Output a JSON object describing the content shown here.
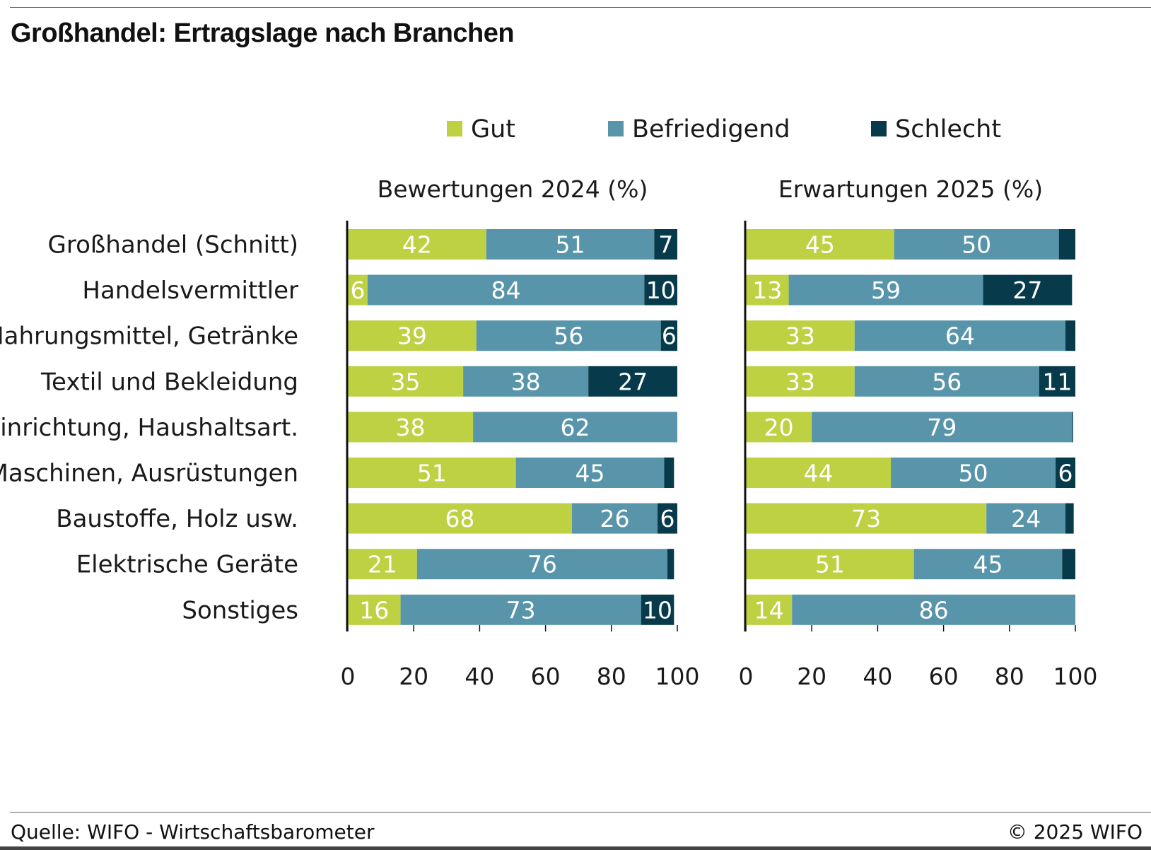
{
  "title": "Großhandel: Ertragslage nach Branchen",
  "source": "Quelle: WIFO - Wirtschaftsbarometer",
  "copyright": "© 2025 WIFO",
  "colors": {
    "gut": "#bdd142",
    "befriedigend": "#5895ab",
    "schlecht": "#073b4c"
  },
  "chart_data": [
    {
      "type": "bar",
      "orientation": "horizontal",
      "stacked": true,
      "title": "Bewertungen 2024 (%)",
      "categories": [
        "Großhandel (Schnitt)",
        "Handelsvermittler",
        "Nahrungsmittel, Getränke",
        "Textil und Bekleidung",
        "Einrichtung, Haushaltsart.",
        "Maschinen, Ausrüstungen",
        "Baustoffe, Holz usw.",
        "Elektrische Geräte",
        "Sonstiges"
      ],
      "series": [
        {
          "name": "Gut",
          "values": [
            42,
            6,
            39,
            35,
            38,
            51,
            68,
            21,
            16
          ],
          "labels": [
            "42",
            "6",
            "39",
            "35",
            "38",
            "51",
            "68",
            "21",
            "16"
          ]
        },
        {
          "name": "Befriedigend",
          "values": [
            51,
            84,
            56,
            38,
            62,
            45,
            26,
            76,
            73
          ],
          "labels": [
            "51",
            "84",
            "56",
            "38",
            "62",
            "45",
            "26",
            "76",
            "73"
          ]
        },
        {
          "name": "Schlecht",
          "values": [
            7,
            10,
            6,
            27,
            0.3,
            3,
            6,
            2,
            10
          ],
          "labels": [
            "7",
            "10",
            "6",
            "27",
            "",
            "",
            "6",
            "",
            "10"
          ]
        }
      ],
      "xlim": [
        0,
        100
      ],
      "xticks": [
        "0",
        "20",
        "40",
        "60",
        "80",
        "100"
      ],
      "legend": "top",
      "grid": false
    },
    {
      "type": "bar",
      "orientation": "horizontal",
      "stacked": true,
      "title": "Erwartungen 2025 (%)",
      "categories": [
        "Großhandel (Schnitt)",
        "Handelsvermittler",
        "Nahrungsmittel, Getränke",
        "Textil und Bekleidung",
        "Einrichtung, Haushaltsart.",
        "Maschinen, Ausrüstungen",
        "Baustoffe, Holz usw.",
        "Elektrische Geräte",
        "Sonstiges"
      ],
      "series": [
        {
          "name": "Gut",
          "values": [
            45,
            13,
            33,
            33,
            20,
            44,
            73,
            51,
            14
          ],
          "labels": [
            "45",
            "13",
            "33",
            "33",
            "20",
            "44",
            "73",
            "51",
            "14"
          ]
        },
        {
          "name": "Befriedigend",
          "values": [
            50,
            59,
            64,
            56,
            79,
            50,
            24,
            45,
            86
          ],
          "labels": [
            "50",
            "59",
            "64",
            "56",
            "79",
            "50",
            "24",
            "45",
            "86"
          ]
        },
        {
          "name": "Schlecht",
          "values": [
            5,
            27,
            3,
            11,
            0.3,
            6,
            2.5,
            4.5,
            0
          ],
          "labels": [
            "",
            "27",
            "",
            "11",
            "",
            "6",
            "",
            "",
            ""
          ]
        }
      ],
      "xlim": [
        0,
        100
      ],
      "xticks": [
        "0",
        "20",
        "40",
        "60",
        "80",
        "100"
      ],
      "legend": "top",
      "grid": false
    }
  ]
}
